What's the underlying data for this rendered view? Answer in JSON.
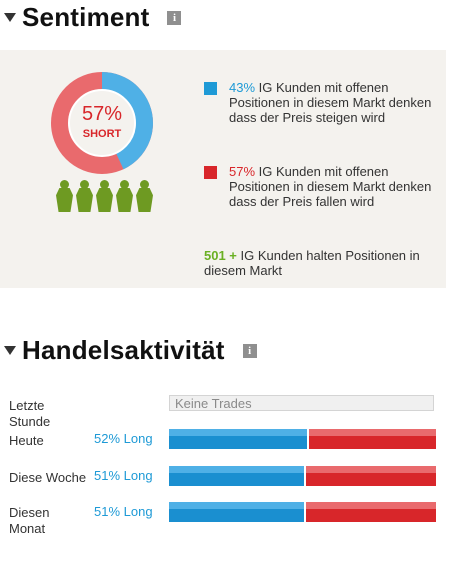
{
  "sentiment": {
    "title": "Sentiment",
    "info_icon": "i",
    "short_pct": "57%",
    "short_label": "SHORT",
    "long_fraction": 0.43,
    "colors": {
      "long": "#1e9ad6",
      "short": "#d8262a",
      "traders": "#6ab023"
    },
    "long_pct": "43%",
    "long_text": " IG Kunden mit offenen Positionen in diesem Markt denken dass der Preis steigen wird",
    "short_pct_text": "57%",
    "short_text": " IG Kunden mit offenen Positionen in diesem Markt denken dass der Preis fallen wird",
    "clients_count": "501 +",
    "clients_text": " IG Kunden halten Positionen in diesem Markt"
  },
  "activity": {
    "title": "Handelsaktivität",
    "info_icon": "i",
    "rows": [
      {
        "label": "Letzte Stunde",
        "pct": "",
        "status": "Keine Trades"
      },
      {
        "label": "Heute",
        "pct": "52% Long",
        "long_fraction": 0.52
      },
      {
        "label": "Diese Woche",
        "pct": "51% Long",
        "long_fraction": 0.51
      },
      {
        "label": "Diesen Monat",
        "pct": "51% Long",
        "long_fraction": 0.51
      }
    ]
  }
}
